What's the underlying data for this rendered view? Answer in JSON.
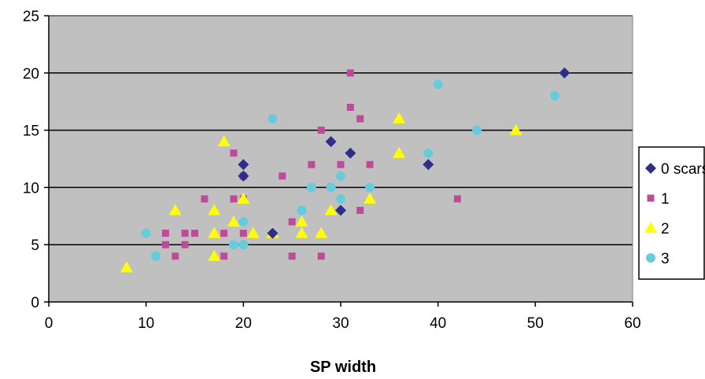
{
  "chart_data": {
    "type": "scatter",
    "title": "",
    "xlabel": "SP width",
    "ylabel": "",
    "xlim": [
      0,
      60
    ],
    "ylim": [
      0,
      25
    ],
    "xticks": [
      "0",
      "10",
      "20",
      "30",
      "40",
      "50",
      "60"
    ],
    "yticks": [
      "0",
      "5",
      "10",
      "15",
      "20",
      "25"
    ],
    "grid": "horizontal",
    "legend_position": "right",
    "plot_background": "#c0c0c0",
    "series": [
      {
        "name": "0 scars",
        "marker": "diamond",
        "color": "#2e2e8a",
        "points": [
          [
            20,
            12
          ],
          [
            20,
            11
          ],
          [
            23,
            6
          ],
          [
            29,
            14
          ],
          [
            30,
            8
          ],
          [
            31,
            13
          ],
          [
            39,
            12
          ],
          [
            53,
            20
          ]
        ]
      },
      {
        "name": "1",
        "marker": "square",
        "color": "#c04a9a",
        "points": [
          [
            11,
            4
          ],
          [
            12,
            6
          ],
          [
            12,
            5
          ],
          [
            13,
            4
          ],
          [
            14,
            6
          ],
          [
            14,
            5
          ],
          [
            15,
            6
          ],
          [
            16,
            9
          ],
          [
            18,
            6
          ],
          [
            18,
            4
          ],
          [
            19,
            13
          ],
          [
            19,
            9
          ],
          [
            20,
            11
          ],
          [
            20,
            9
          ],
          [
            20,
            6
          ],
          [
            24,
            11
          ],
          [
            25,
            7
          ],
          [
            25,
            4
          ],
          [
            27,
            12
          ],
          [
            28,
            15
          ],
          [
            28,
            4
          ],
          [
            30,
            12
          ],
          [
            31,
            20
          ],
          [
            31,
            17
          ],
          [
            32,
            16
          ],
          [
            32,
            8
          ],
          [
            33,
            12
          ],
          [
            42,
            9
          ]
        ]
      },
      {
        "name": "2",
        "marker": "triangle",
        "color": "#ffff00",
        "points": [
          [
            8,
            3
          ],
          [
            13,
            8
          ],
          [
            17,
            8
          ],
          [
            17,
            6
          ],
          [
            17,
            4
          ],
          [
            18,
            14
          ],
          [
            19,
            7
          ],
          [
            20,
            9
          ],
          [
            21,
            6
          ],
          [
            23,
            6
          ],
          [
            26,
            7
          ],
          [
            26,
            6
          ],
          [
            28,
            6
          ],
          [
            29,
            8
          ],
          [
            33,
            9
          ],
          [
            36,
            16
          ],
          [
            36,
            13
          ],
          [
            48,
            15
          ]
        ]
      },
      {
        "name": "3",
        "marker": "circle",
        "color": "#66ccdd",
        "points": [
          [
            10,
            6
          ],
          [
            11,
            4
          ],
          [
            19,
            5
          ],
          [
            20,
            7
          ],
          [
            20,
            5
          ],
          [
            23,
            16
          ],
          [
            26,
            8
          ],
          [
            27,
            10
          ],
          [
            29,
            10
          ],
          [
            30,
            11
          ],
          [
            30,
            9
          ],
          [
            33,
            10
          ],
          [
            39,
            13
          ],
          [
            40,
            19
          ],
          [
            44,
            15
          ],
          [
            52,
            18
          ]
        ]
      }
    ]
  }
}
